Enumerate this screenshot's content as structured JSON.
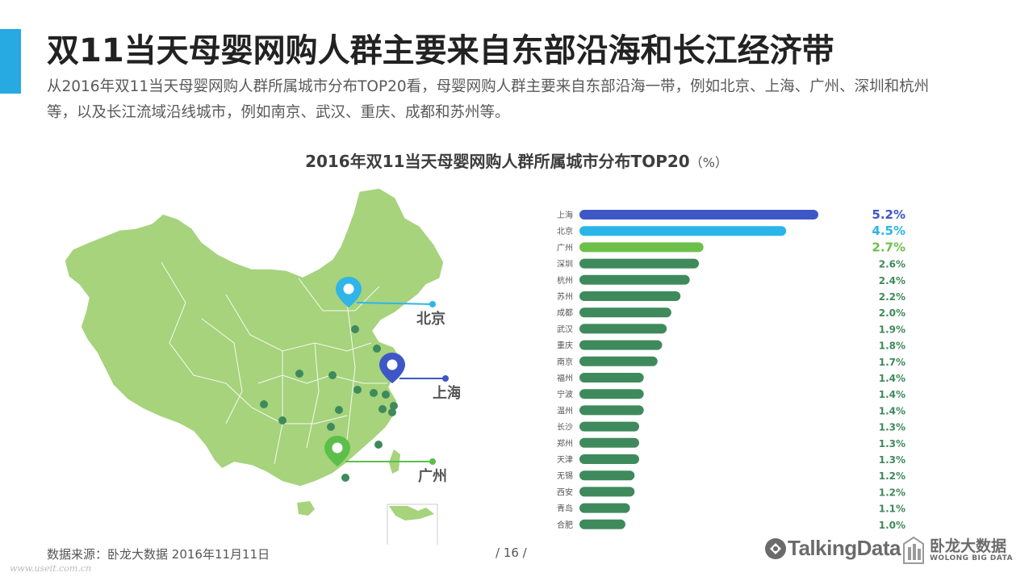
{
  "page": {
    "title": "双11当天母婴网购人群主要来自东部沿海和长江经济带",
    "subtitle": "从2016年双11当天母婴网购人群所属城市分布TOP20看，母婴网购人群主要来自东部沿海一带，例如北京、上海、广州、深圳和杭州等，以及长江流域沿线城市，例如南京、武汉、重庆、成都和苏州等。",
    "chart_title": "2016年双11当天母婴网购人群所属城市分布TOP20",
    "chart_unit": "（%）",
    "source": "数据来源：卧龙大数据  2016年11月11日",
    "page_number": "/  16  /",
    "watermark": "www.useit.com.cn",
    "brand_talkingdata": "TalkingData",
    "brand_wolong_cn": "卧龙大数据",
    "brand_wolong_en": "WOLONG BIG DATA"
  },
  "map": {
    "pins": [
      {
        "name": "beijing",
        "label": "北京",
        "color": "#2fb5e8"
      },
      {
        "name": "shanghai",
        "label": "上海",
        "color": "#3d57c7"
      },
      {
        "name": "guangzhou",
        "label": "广州",
        "color": "#5bbf4a"
      }
    ],
    "land_color": "#a6d37c",
    "dot_color": "#3f8a5c"
  },
  "chart_data": {
    "type": "bar",
    "orientation": "horizontal",
    "title": "2016年双11当天母婴网购人群所属城市分布TOP20",
    "unit": "%",
    "categories": [
      "上海",
      "北京",
      "广州",
      "深圳",
      "杭州",
      "苏州",
      "成都",
      "武汉",
      "重庆",
      "南京",
      "福州",
      "宁波",
      "温州",
      "长沙",
      "郑州",
      "天津",
      "无锡",
      "西安",
      "青岛",
      "合肥"
    ],
    "values": [
      5.2,
      4.5,
      2.7,
      2.6,
      2.4,
      2.2,
      2.0,
      1.9,
      1.8,
      1.7,
      1.4,
      1.4,
      1.4,
      1.3,
      1.3,
      1.3,
      1.2,
      1.2,
      1.1,
      1.0
    ],
    "value_labels": [
      "5.2%",
      "4.5%",
      "2.7%",
      "2.6%",
      "2.4%",
      "2.2%",
      "2.0%",
      "1.9%",
      "1.8%",
      "1.7%",
      "1.4%",
      "1.4%",
      "1.4%",
      "1.3%",
      "1.3%",
      "1.3%",
      "1.2%",
      "1.2%",
      "1.1%",
      "1.0%"
    ],
    "colors": {
      "top1": "#3d57c7",
      "top2": "#29b5e8",
      "top3": "#6cc04a",
      "rest": "#3f8a5c"
    }
  }
}
